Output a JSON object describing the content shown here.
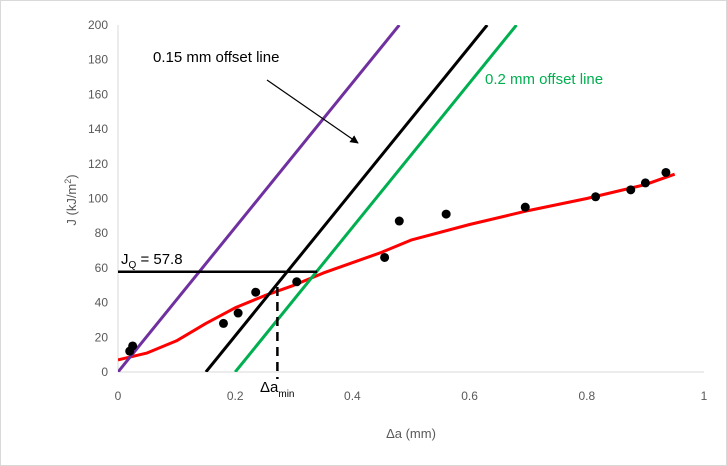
{
  "chart_data": {
    "type": "scatter",
    "xlabel": "Δa (mm)",
    "ylabel": "J (kJ/m2)",
    "ylabel_main": "J (kJ/m",
    "ylabel_sup": "2",
    "ylabel_end": ")",
    "xlim": [
      0,
      1
    ],
    "ylim": [
      0,
      200
    ],
    "x_ticks": [
      0,
      0.2,
      0.4,
      0.6,
      0.8,
      1
    ],
    "x_tick_labels": [
      "0",
      "0.2",
      "0.4",
      "0.6",
      "0.8",
      "1"
    ],
    "y_ticks": [
      0,
      20,
      40,
      60,
      80,
      100,
      120,
      140,
      160,
      180,
      200
    ],
    "y_tick_labels": [
      "0",
      "20",
      "40",
      "60",
      "80",
      "100",
      "120",
      "140",
      "160",
      "180",
      "200"
    ],
    "grid": false,
    "series": [
      {
        "type": "scatter",
        "color": "#000000",
        "x": [
          0.02,
          0.025,
          0.18,
          0.205,
          0.235,
          0.305,
          0.455,
          0.48,
          0.56,
          0.695,
          0.815,
          0.875,
          0.9,
          0.935
        ],
        "y": [
          12,
          15,
          28,
          34,
          46,
          52,
          66,
          87,
          91,
          95,
          101,
          105,
          109,
          115
        ]
      },
      {
        "type": "line",
        "color": "#ff0000",
        "x": [
          0,
          0.05,
          0.1,
          0.15,
          0.2,
          0.25,
          0.3,
          0.35,
          0.4,
          0.45,
          0.5,
          0.6,
          0.7,
          0.8,
          0.9,
          0.95
        ],
        "y": [
          7,
          11,
          18,
          28,
          37,
          44,
          50,
          57,
          63,
          69,
          76,
          85,
          93,
          100,
          108,
          114
        ]
      },
      {
        "type": "line",
        "color": "#7030a0",
        "x": [
          0.0,
          0.48
        ],
        "y": [
          0,
          200
        ]
      },
      {
        "type": "line",
        "color": "#000000",
        "x": [
          0.15,
          0.63
        ],
        "y": [
          0,
          200
        ]
      },
      {
        "type": "line",
        "color": "#00b050",
        "x": [
          0.2,
          0.68
        ],
        "y": [
          0,
          200
        ]
      }
    ],
    "annotations": {
      "offset_015": "0.15 mm offset line",
      "offset_02": "0.2 mm offset line",
      "jq_prefix": "J",
      "jq_sub": "Q",
      "jq_value": " = 57.8",
      "jq": 57.8,
      "delta_prefix": "Δa",
      "delta_sub": "min",
      "delta_a_min": 0.272
    },
    "colors": {
      "points": "#000000",
      "fit": "#ff0000",
      "blunting": "#7030a0",
      "offset_015": "#000000",
      "offset_02": "#00b050",
      "axis": "#d9d9d9",
      "text": "#595959"
    }
  }
}
